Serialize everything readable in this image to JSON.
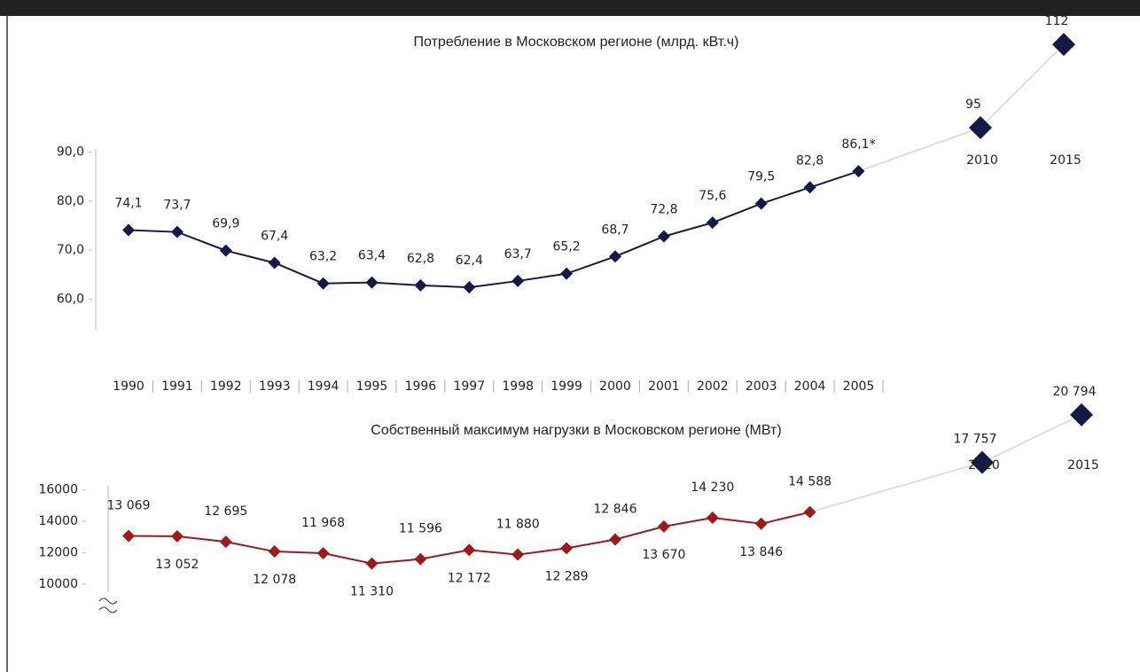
{
  "chart_data": [
    {
      "type": "line",
      "title": "Потребление в Московском регионе (млрд. кВт.ч)",
      "categories": [
        "1990",
        "1991",
        "1992",
        "1993",
        "1994",
        "1995",
        "1996",
        "1997",
        "1998",
        "1999",
        "2000",
        "2001",
        "2002",
        "2003",
        "2004",
        "2005"
      ],
      "values": [
        74.1,
        73.7,
        69.9,
        67.4,
        63.2,
        63.4,
        62.8,
        62.4,
        63.7,
        65.2,
        68.7,
        72.8,
        75.6,
        79.5,
        82.8,
        86.1
      ],
      "value_labels": [
        "74,1",
        "73,7",
        "69,9",
        "67,4",
        "63,2",
        "63,4",
        "62,8",
        "62,4",
        "63,7",
        "65,2",
        "68,7",
        "72,8",
        "75,6",
        "79,5",
        "82,8",
        "86,1*"
      ],
      "color": "#141a46",
      "ylim": [
        55,
        95
      ],
      "yticks": [
        {
          "value": 60,
          "label": "60,0"
        },
        {
          "value": 70,
          "label": "70,0"
        },
        {
          "value": 80,
          "label": "80,0"
        },
        {
          "value": 90,
          "label": "90,0"
        }
      ],
      "forecast": {
        "categories": [
          "2010",
          "2015"
        ],
        "values": [
          95,
          112
        ],
        "color": "#b03a2e"
      }
    },
    {
      "type": "line",
      "title": "Собственный максимум нагрузки в Московском регионе (МВт)",
      "values": [
        13069,
        13052,
        12695,
        12078,
        11968,
        11310,
        11596,
        12172,
        11880,
        12289,
        12846,
        13670,
        14230,
        13846,
        14588
      ],
      "value_labels": [
        "13 069",
        "13 052",
        "12 695",
        "12 078",
        "11 968",
        "11 310",
        "11 596",
        "12 172",
        "11 880",
        "12 289",
        "12 846",
        "13 670",
        "14 230",
        "13 846",
        "14 588"
      ],
      "color": "#9c1a1a",
      "ylim": [
        9000,
        17000
      ],
      "yticks": [
        10000,
        12000,
        14000,
        16000
      ],
      "forecast": {
        "categories": [
          "2010",
          "2015"
        ],
        "values": [
          17757,
          20794
        ],
        "value_labels": [
          "17 757",
          "20 794"
        ],
        "color": "#b03a2e"
      }
    }
  ]
}
